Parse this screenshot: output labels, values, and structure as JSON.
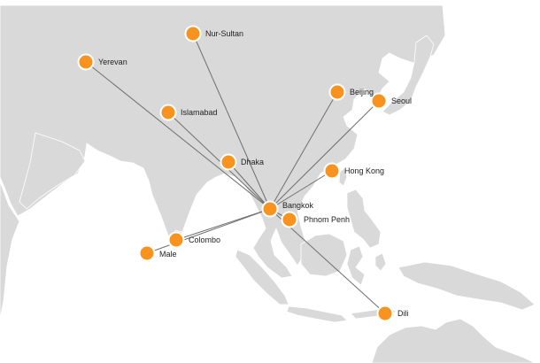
{
  "map": {
    "hub": "Bangkok",
    "colors": {
      "land": "#d9d9d9",
      "water": "#ffffff",
      "marker": "#f7931e",
      "route": "#6f6f6f"
    },
    "cities": [
      {
        "id": "nur-sultan",
        "name": "Nur-Sultan"
      },
      {
        "id": "yerevan",
        "name": "Yerevan"
      },
      {
        "id": "beijing",
        "name": "Beijing"
      },
      {
        "id": "seoul",
        "name": "Seoul"
      },
      {
        "id": "islamabad",
        "name": "Islamabad"
      },
      {
        "id": "dhaka",
        "name": "Dhaka"
      },
      {
        "id": "hong-kong",
        "name": "Hong Kong"
      },
      {
        "id": "bangkok",
        "name": "Bangkok"
      },
      {
        "id": "phnom-penh",
        "name": "Phnom Penh"
      },
      {
        "id": "colombo",
        "name": "Colombo"
      },
      {
        "id": "male",
        "name": "Male"
      },
      {
        "id": "dili",
        "name": "Dili"
      }
    ]
  }
}
